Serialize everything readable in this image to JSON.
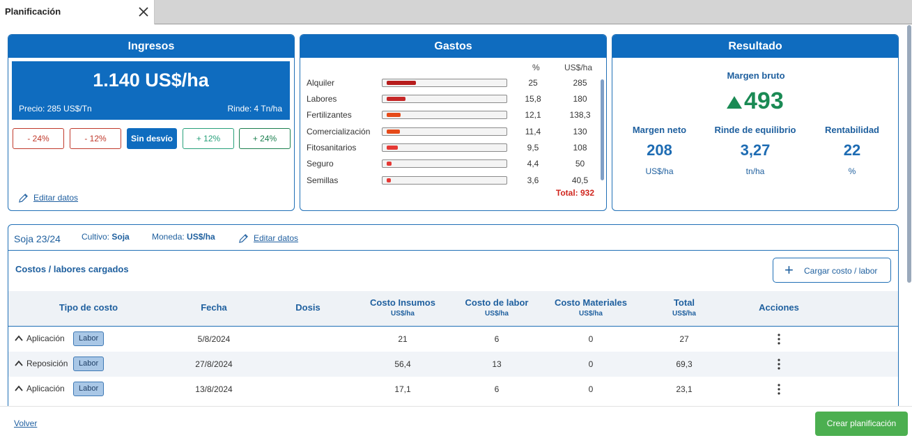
{
  "tab": {
    "title": "Planificación"
  },
  "ingresos": {
    "header": "Ingresos",
    "value": "1.140 US$/ha",
    "precio": "Precio: 285 US$/Tn",
    "rinde": "Rinde: 4 Tn/ha",
    "deviations": [
      "- 24%",
      "- 12%",
      "Sin desvío",
      "+ 12%",
      "+ 24%"
    ],
    "edit_label": "Editar datos"
  },
  "gastos": {
    "header": "Gastos",
    "col_pct": "%",
    "col_usd": "US$/ha",
    "items": [
      {
        "label": "Alquiler",
        "pct": "25",
        "usd": "285",
        "share": 0.25,
        "color": "#b71c1c"
      },
      {
        "label": "Labores",
        "pct": "15,8",
        "usd": "180",
        "share": 0.158,
        "color": "#c62828"
      },
      {
        "label": "Fertilizantes",
        "pct": "12,1",
        "usd": "138,3",
        "share": 0.121,
        "color": "#e64a19"
      },
      {
        "label": "Comercialización",
        "pct": "11,4",
        "usd": "130",
        "share": 0.114,
        "color": "#e64a19"
      },
      {
        "label": "Fitosanitarios",
        "pct": "9,5",
        "usd": "108",
        "share": 0.095,
        "color": "#e53935"
      },
      {
        "label": "Seguro",
        "pct": "4,4",
        "usd": "50",
        "share": 0.044,
        "color": "#e53935"
      },
      {
        "label": "Semillas",
        "pct": "3,6",
        "usd": "40,5",
        "share": 0.036,
        "color": "#e53935"
      }
    ],
    "total": "Total: 932"
  },
  "resultado": {
    "header": "Resultado",
    "margen_bruto_label": "Margen bruto",
    "margen_bruto_value": "493",
    "metrics": [
      {
        "label": "Margen neto",
        "value": "208",
        "unit": "US$/ha"
      },
      {
        "label": "Rinde de equilibrio",
        "value": "3,27",
        "unit": "tn/ha"
      },
      {
        "label": "Rentabilidad",
        "value": "22",
        "unit": "%"
      }
    ]
  },
  "panel": {
    "campaign": "Soja 23/24",
    "cultivo_label": "Cultivo:",
    "cultivo_value": "Soja",
    "moneda_label": "Moneda:",
    "moneda_value": "US$/ha",
    "edit_label": "Editar datos",
    "subtitle": "Costos / labores cargados",
    "add_button": "Cargar costo / labor",
    "columns": [
      {
        "label": "Tipo de costo",
        "unit": ""
      },
      {
        "label": "Fecha",
        "unit": ""
      },
      {
        "label": "Dosis",
        "unit": ""
      },
      {
        "label": "Costo Insumos",
        "unit": "US$/ha"
      },
      {
        "label": "Costo de labor",
        "unit": "US$/ha"
      },
      {
        "label": "Costo Materiales",
        "unit": "US$/ha"
      },
      {
        "label": "Total",
        "unit": "US$/ha"
      },
      {
        "label": "Acciones",
        "unit": ""
      }
    ],
    "rows": [
      {
        "type": "Aplicación",
        "badge": "Labor",
        "fecha": "5/8/2024",
        "insumos": "21",
        "labor": "6",
        "materiales": "0",
        "total": "27"
      },
      {
        "type": "Reposición",
        "badge": "Labor",
        "fecha": "27/8/2024",
        "insumos": "56,4",
        "labor": "13",
        "materiales": "0",
        "total": "69,3"
      },
      {
        "type": "Aplicación",
        "badge": "Labor",
        "fecha": "13/8/2024",
        "insumos": "17,1",
        "labor": "6",
        "materiales": "0",
        "total": "23,1"
      }
    ]
  },
  "footer": {
    "back": "Volver",
    "create": "Crear planificación"
  }
}
